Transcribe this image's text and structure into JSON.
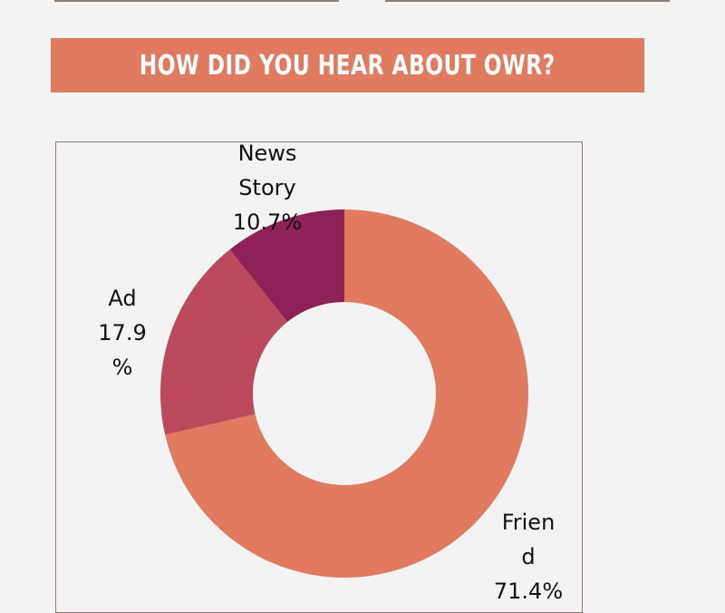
{
  "title": "HOW DID YOU HEAR ABOUT OWR?",
  "colors": {
    "banner": "#e07b60",
    "background": "#f3f3f3",
    "frame": "#8f7d76"
  },
  "chart_data": {
    "type": "pie",
    "donut": true,
    "slices": [
      {
        "label": "Friend",
        "value": 71.4,
        "display": "Frien\nd\n71.4%",
        "color": "#e07b60"
      },
      {
        "label": "Ad",
        "value": 17.9,
        "display": "Ad\n17.9\n%",
        "color": "#bb4a5e"
      },
      {
        "label": "News Story",
        "value": 10.7,
        "display": "News\nStory\n10.7%",
        "color": "#8e2257"
      }
    ]
  }
}
